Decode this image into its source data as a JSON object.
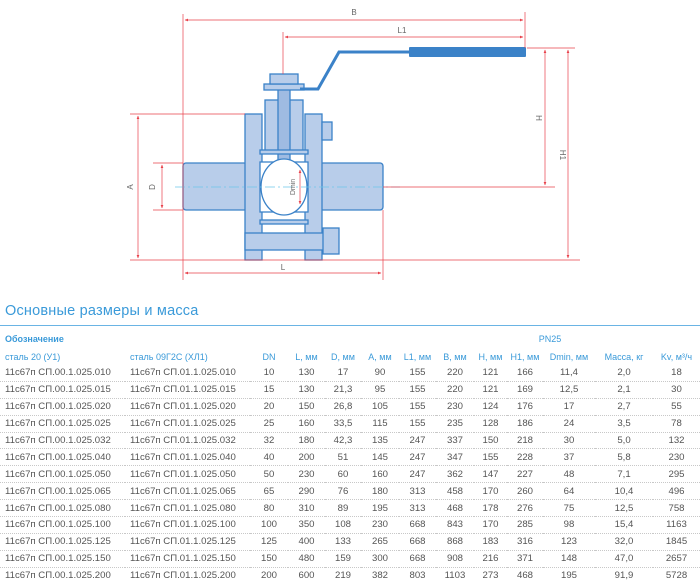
{
  "drawing": {
    "dimension_labels": {
      "B": "B",
      "L1": "L1",
      "H": "H",
      "H1": "H1",
      "A": "A",
      "D": "D",
      "Dmin": "Dmin",
      "L": "L"
    },
    "colors": {
      "valve": "#3b82c8",
      "valve_fill": "#b8cdea",
      "dimension": "#e8414a"
    }
  },
  "title": "Основные размеры и масса",
  "table": {
    "group_header": "Обозначение",
    "pressure_header": "PN25",
    "columns": [
      "сталь 20 (У1)",
      "сталь 09Г2С (ХЛ1)",
      "DN",
      "L, мм",
      "D, мм",
      "A, мм",
      "L1, мм",
      "B, мм",
      "H, мм",
      "H1, мм",
      "Dmin, мм",
      "Масса, кг",
      "Kv, м³/ч"
    ],
    "rows": [
      [
        "11с67п СП.00.1.025.010",
        "11с67п СП.01.1.025.010",
        "10",
        "130",
        "17",
        "90",
        "155",
        "220",
        "121",
        "166",
        "11,4",
        "2,0",
        "18"
      ],
      [
        "11с67п СП.00.1.025.015",
        "11с67п СП.01.1.025.015",
        "15",
        "130",
        "21,3",
        "95",
        "155",
        "220",
        "121",
        "169",
        "12,5",
        "2,1",
        "30"
      ],
      [
        "11с67п СП.00.1.025.020",
        "11с67п СП.01.1.025.020",
        "20",
        "150",
        "26,8",
        "105",
        "155",
        "230",
        "124",
        "176",
        "17",
        "2,7",
        "55"
      ],
      [
        "11с67п СП.00.1.025.025",
        "11с67п СП.01.1.025.025",
        "25",
        "160",
        "33,5",
        "115",
        "155",
        "235",
        "128",
        "186",
        "24",
        "3,5",
        "78"
      ],
      [
        "11с67п СП.00.1.025.032",
        "11с67п СП.01.1.025.032",
        "32",
        "180",
        "42,3",
        "135",
        "247",
        "337",
        "150",
        "218",
        "30",
        "5,0",
        "132"
      ],
      [
        "11с67п СП.00.1.025.040",
        "11с67п СП.01.1.025.040",
        "40",
        "200",
        "51",
        "145",
        "247",
        "347",
        "155",
        "228",
        "37",
        "5,8",
        "230"
      ],
      [
        "11с67п СП.00.1.025.050",
        "11с67п СП.01.1.025.050",
        "50",
        "230",
        "60",
        "160",
        "247",
        "362",
        "147",
        "227",
        "48",
        "7,1",
        "295"
      ],
      [
        "11с67п СП.00.1.025.065",
        "11с67п СП.01.1.025.065",
        "65",
        "290",
        "76",
        "180",
        "313",
        "458",
        "170",
        "260",
        "64",
        "10,4",
        "496"
      ],
      [
        "11с67п СП.00.1.025.080",
        "11с67п СП.01.1.025.080",
        "80",
        "310",
        "89",
        "195",
        "313",
        "468",
        "178",
        "276",
        "75",
        "12,5",
        "758"
      ],
      [
        "11с67п СП.00.1.025.100",
        "11с67п СП.01.1.025.100",
        "100",
        "350",
        "108",
        "230",
        "668",
        "843",
        "170",
        "285",
        "98",
        "15,4",
        "1163"
      ],
      [
        "11с67п СП.00.1.025.125",
        "11с67п СП.01.1.025.125",
        "125",
        "400",
        "133",
        "265",
        "668",
        "868",
        "183",
        "316",
        "123",
        "32,0",
        "1845"
      ],
      [
        "11с67п СП.00.1.025.150",
        "11с67п СП.01.1.025.150",
        "150",
        "480",
        "159",
        "300",
        "668",
        "908",
        "216",
        "371",
        "148",
        "47,0",
        "2657"
      ],
      [
        "11с67п СП.00.1.025.200",
        "11с67п СП.01.1.025.200",
        "200",
        "600",
        "219",
        "382",
        "803",
        "1103",
        "273",
        "468",
        "195",
        "91,9",
        "5728"
      ]
    ]
  }
}
